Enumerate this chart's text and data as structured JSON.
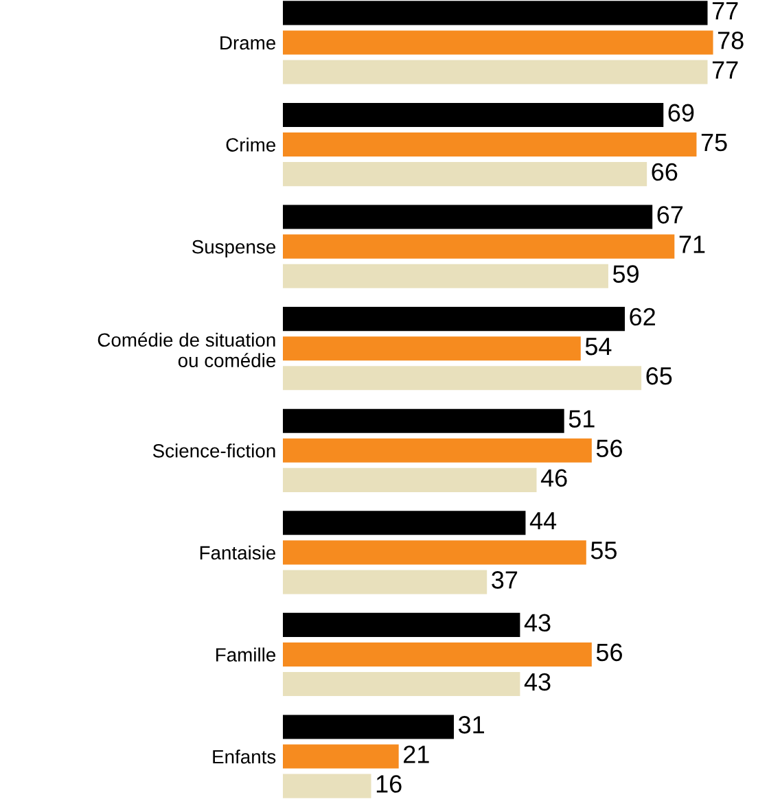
{
  "chart_data": {
    "type": "bar",
    "orientation": "horizontal",
    "data_labels": true,
    "grid": false,
    "legend": false,
    "categories": [
      "Drame",
      "Crime",
      "Suspense",
      "Comédie de situation\nou comédie",
      "Science-fiction",
      "Fantaisie",
      "Famille",
      "Enfants"
    ],
    "tick_labels": "y",
    "series": [
      {
        "color": "#000000",
        "values": [
          77,
          69,
          67,
          62,
          51,
          44,
          43,
          31
        ]
      },
      {
        "color": "#f68b1f",
        "values": [
          78,
          75,
          71,
          54,
          56,
          55,
          56,
          21
        ]
      },
      {
        "color": "#e8e0bc",
        "values": [
          77,
          66,
          59,
          65,
          46,
          37,
          43,
          16
        ]
      }
    ]
  }
}
